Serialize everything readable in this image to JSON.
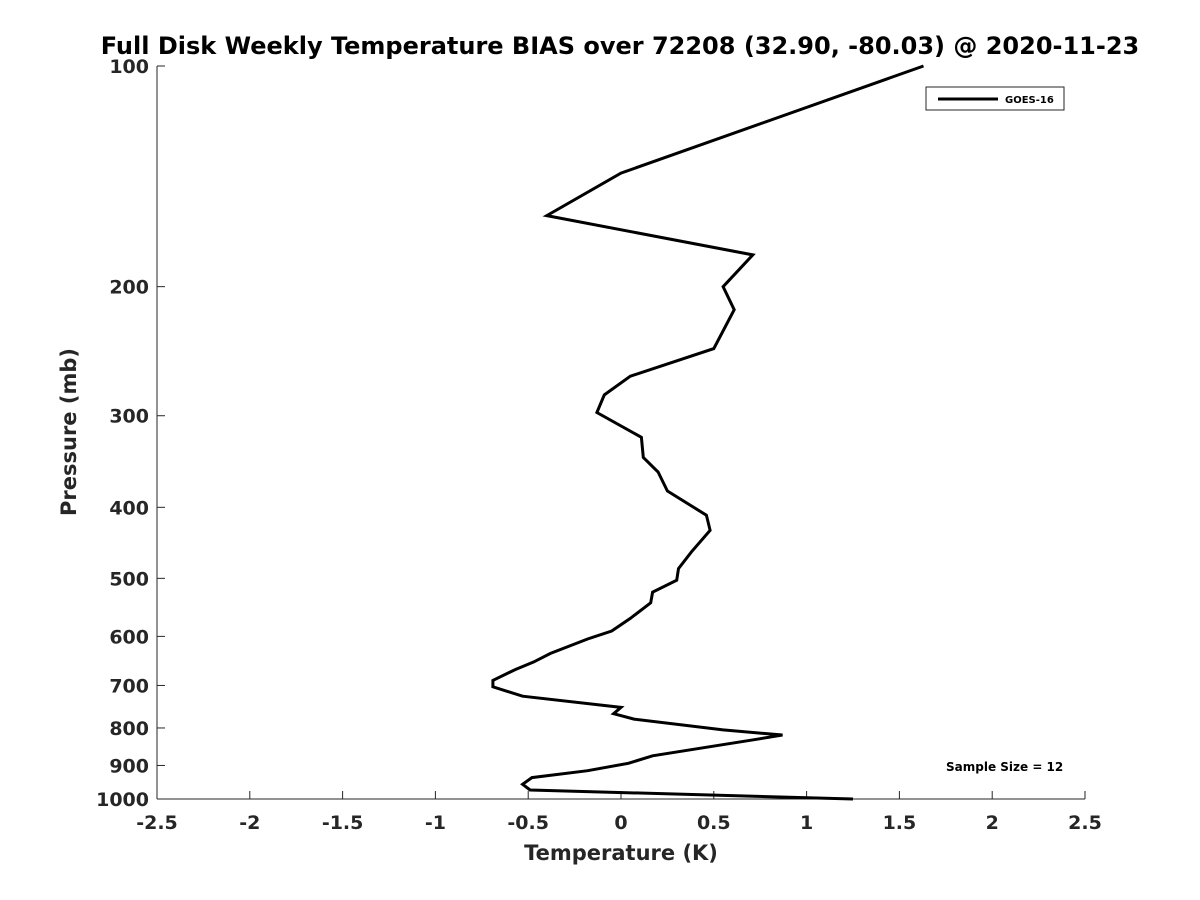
{
  "chart_data": {
    "type": "line",
    "title": "Full Disk Weekly Temperature BIAS over 72208 (32.90, -80.03) @ 2020-11-23",
    "xlabel": "Temperature (K)",
    "ylabel": "Pressure (mb)",
    "xlim": [
      -2.5,
      2.5
    ],
    "ylim": [
      1000,
      100
    ],
    "yscale": "log",
    "y_reversed": true,
    "x_ticks": [
      "-2.5",
      "-2",
      "-1.5",
      "-1",
      "-0.5",
      "0",
      "0.5",
      "1",
      "1.5",
      "2",
      "2.5"
    ],
    "x_tick_values": [
      -2.5,
      -2,
      -1.5,
      -1,
      -0.5,
      0,
      0.5,
      1,
      1.5,
      2,
      2.5
    ],
    "y_ticks": [
      "100",
      "200",
      "300",
      "400",
      "500",
      "600",
      "700",
      "800",
      "900",
      "1000"
    ],
    "y_tick_values": [
      100,
      200,
      300,
      400,
      500,
      600,
      700,
      800,
      900,
      1000
    ],
    "grid": false,
    "legend_position": "top-right",
    "series": [
      {
        "name": "GOES-16",
        "color": "#000000",
        "points": [
          [
            1.63,
            100
          ],
          [
            0.0,
            140
          ],
          [
            -0.4,
            160
          ],
          [
            0.71,
            181
          ],
          [
            0.55,
            200
          ],
          [
            0.61,
            215
          ],
          [
            0.5,
            243
          ],
          [
            0.05,
            265
          ],
          [
            -0.09,
            281
          ],
          [
            -0.13,
            297
          ],
          [
            0.11,
            321
          ],
          [
            0.12,
            342
          ],
          [
            0.2,
            358
          ],
          [
            0.25,
            380
          ],
          [
            0.46,
            410
          ],
          [
            0.48,
            430
          ],
          [
            0.38,
            460
          ],
          [
            0.31,
            485
          ],
          [
            0.3,
            503
          ],
          [
            0.17,
            522
          ],
          [
            0.16,
            540
          ],
          [
            0.05,
            567
          ],
          [
            -0.05,
            590
          ],
          [
            -0.18,
            605
          ],
          [
            -0.38,
            633
          ],
          [
            -0.47,
            650
          ],
          [
            -0.57,
            666
          ],
          [
            -0.69,
            689
          ],
          [
            -0.69,
            703
          ],
          [
            -0.53,
            724
          ],
          [
            0.0,
            750
          ],
          [
            -0.04,
            765
          ],
          [
            0.07,
            778
          ],
          [
            0.55,
            805
          ],
          [
            0.87,
            818
          ],
          [
            0.73,
            829
          ],
          [
            0.17,
            873
          ],
          [
            0.04,
            894
          ],
          [
            -0.18,
            915
          ],
          [
            -0.48,
            935
          ],
          [
            -0.53,
            955
          ],
          [
            -0.49,
            972
          ],
          [
            1.25,
            1000
          ]
        ]
      }
    ],
    "annotations": [
      "Sample Size = 12"
    ]
  }
}
